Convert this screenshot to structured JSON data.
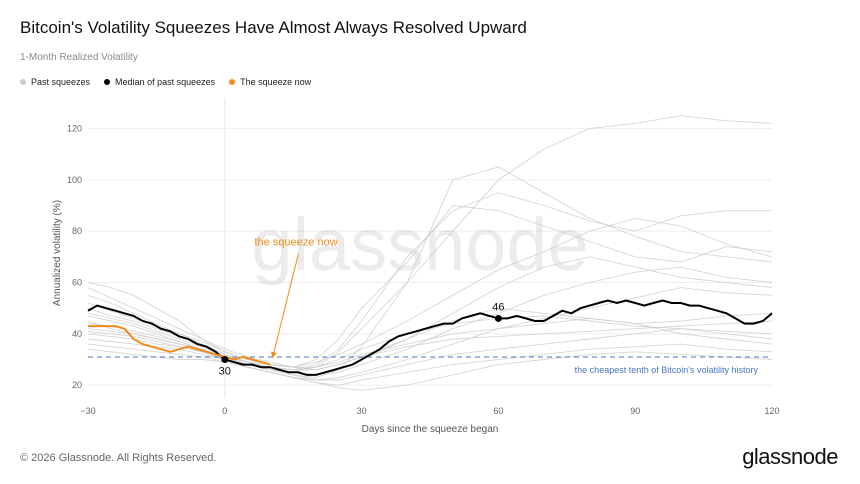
{
  "header": {
    "title": "Bitcoin's Volatility Squeezes Have Almost Always Resolved Upward",
    "subtitle": "1-Month Realized Volatility"
  },
  "footer": {
    "copyright": "© 2026 Glassnode. All Rights Reserved.",
    "logo": "glassnode"
  },
  "watermark": "glassnode",
  "colors": {
    "past": "#cccccc",
    "median": "#000000",
    "now": "#f08c1e",
    "threshold": "#4a78c2",
    "grid": "#eeeeee"
  },
  "chart_data": {
    "type": "line",
    "title": "Bitcoin's Volatility Squeezes Have Almost Always Resolved Upward",
    "subtitle": "1-Month Realized Volatility",
    "xlabel": "Days since the squeeze began",
    "ylabel": "Annualized volatility (%)",
    "xlim": [
      -30,
      120
    ],
    "ylim": [
      15,
      128
    ],
    "xticks": [
      -30,
      0,
      30,
      60,
      90,
      120
    ],
    "yticks": [
      20,
      40,
      60,
      80,
      100,
      120
    ],
    "grid": true,
    "legend_placement": "top-left",
    "legend": [
      {
        "label": "Past squeezes",
        "color": "#cccccc"
      },
      {
        "label": "Median of past squeezes",
        "color": "#000000"
      },
      {
        "label": "The squeeze now",
        "color": "#f08c1e"
      }
    ],
    "threshold": {
      "y": 31,
      "label": "the cheapest tenth of Bitcoin's volatility history"
    },
    "annotations": [
      {
        "text": "the squeeze now",
        "x": 3,
        "y": 76,
        "arrow_to": [
          10,
          29
        ]
      },
      {
        "text": "30",
        "x": 0,
        "y": 30,
        "marker": true
      },
      {
        "text": "46",
        "x": 60,
        "y": 46,
        "marker": true
      }
    ],
    "series": [
      {
        "name": "Median of past squeezes",
        "role": "median",
        "x": [
          -30,
          -28,
          -26,
          -24,
          -22,
          -20,
          -18,
          -16,
          -14,
          -12,
          -10,
          -8,
          -6,
          -4,
          -2,
          0,
          2,
          4,
          6,
          8,
          10,
          12,
          14,
          16,
          18,
          20,
          22,
          24,
          26,
          28,
          30,
          32,
          34,
          36,
          38,
          40,
          42,
          44,
          46,
          48,
          50,
          52,
          54,
          56,
          58,
          60,
          62,
          64,
          66,
          68,
          70,
          72,
          74,
          76,
          78,
          80,
          82,
          84,
          86,
          88,
          90,
          92,
          94,
          96,
          98,
          100,
          102,
          104,
          106,
          108,
          110,
          112,
          114,
          116,
          118,
          120
        ],
        "values": [
          49,
          51,
          50,
          49,
          48,
          47,
          45,
          44,
          42,
          41,
          39,
          38,
          36,
          35,
          33,
          30,
          29,
          28,
          28,
          27,
          27,
          26,
          25,
          25,
          24,
          24,
          25,
          26,
          27,
          28,
          30,
          32,
          34,
          37,
          39,
          40,
          41,
          42,
          43,
          44,
          44,
          46,
          47,
          48,
          47,
          46,
          46,
          47,
          46,
          45,
          45,
          47,
          49,
          48,
          50,
          51,
          52,
          53,
          52,
          53,
          52,
          51,
          52,
          53,
          52,
          52,
          51,
          51,
          50,
          49,
          48,
          46,
          44,
          44,
          45,
          48
        ]
      },
      {
        "name": "The squeeze now",
        "role": "now",
        "x": [
          -30,
          -28,
          -26,
          -24,
          -22,
          -20,
          -18,
          -16,
          -14,
          -12,
          -10,
          -8,
          -6,
          -4,
          -2,
          0,
          2,
          4,
          6,
          8,
          10
        ],
        "values": [
          43,
          43,
          43,
          43,
          42,
          38,
          36,
          35,
          34,
          33,
          34,
          35,
          34,
          33,
          32,
          31,
          30,
          31,
          30,
          29,
          28
        ]
      },
      {
        "role": "past",
        "x": [
          -30,
          -25,
          -20,
          -15,
          -10,
          -5,
          0,
          5,
          10,
          15,
          20,
          25,
          30,
          40,
          50,
          60,
          70,
          80,
          90,
          100,
          110,
          120
        ],
        "values": [
          55,
          52,
          48,
          44,
          40,
          36,
          32,
          29,
          27,
          25,
          27,
          33,
          42,
          60,
          80,
          100,
          112,
          120,
          122,
          125,
          123,
          122
        ]
      },
      {
        "role": "past",
        "x": [
          -30,
          -25,
          -20,
          -15,
          -10,
          -5,
          0,
          5,
          10,
          15,
          20,
          25,
          30,
          40,
          50,
          60,
          70,
          80,
          90,
          100,
          110,
          120
        ],
        "values": [
          60,
          58,
          55,
          50,
          45,
          38,
          33,
          30,
          28,
          27,
          30,
          38,
          50,
          68,
          90,
          88,
          82,
          76,
          70,
          68,
          74,
          72
        ]
      },
      {
        "role": "past",
        "x": [
          -30,
          -25,
          -20,
          -15,
          -10,
          -5,
          0,
          5,
          10,
          15,
          20,
          25,
          30,
          40,
          50,
          60,
          70,
          80,
          90,
          100,
          110,
          120
        ],
        "values": [
          45,
          42,
          40,
          38,
          36,
          34,
          31,
          28,
          26,
          24,
          23,
          26,
          35,
          60,
          100,
          105,
          95,
          85,
          78,
          72,
          70,
          68
        ]
      },
      {
        "role": "past",
        "x": [
          -30,
          -25,
          -20,
          -15,
          -10,
          -5,
          0,
          5,
          10,
          15,
          20,
          25,
          30,
          40,
          50,
          60,
          70,
          80,
          90,
          100,
          110,
          120
        ],
        "values": [
          40,
          39,
          38,
          36,
          35,
          33,
          30,
          28,
          27,
          26,
          28,
          34,
          45,
          70,
          88,
          95,
          90,
          84,
          80,
          86,
          88,
          88
        ]
      },
      {
        "role": "past",
        "x": [
          -30,
          -25,
          -20,
          -15,
          -10,
          -5,
          0,
          5,
          10,
          15,
          20,
          25,
          30,
          40,
          50,
          60,
          70,
          80,
          90,
          100,
          110,
          120
        ],
        "values": [
          52,
          49,
          46,
          43,
          40,
          37,
          33,
          30,
          28,
          27,
          29,
          32,
          36,
          45,
          55,
          65,
          72,
          80,
          85,
          82,
          75,
          70
        ]
      },
      {
        "role": "past",
        "x": [
          -30,
          -25,
          -20,
          -15,
          -10,
          -5,
          0,
          5,
          10,
          15,
          20,
          25,
          30,
          40,
          50,
          60,
          70,
          80,
          90,
          100,
          110,
          120
        ],
        "values": [
          58,
          54,
          50,
          46,
          42,
          38,
          34,
          31,
          29,
          27,
          26,
          28,
          31,
          38,
          48,
          58,
          66,
          70,
          66,
          62,
          60,
          58
        ]
      },
      {
        "role": "past",
        "x": [
          -30,
          -25,
          -20,
          -15,
          -10,
          -5,
          0,
          5,
          10,
          15,
          20,
          25,
          30,
          40,
          50,
          60,
          70,
          80,
          90,
          100,
          110,
          120
        ],
        "values": [
          48,
          46,
          44,
          41,
          38,
          35,
          31,
          29,
          27,
          25,
          24,
          25,
          28,
          34,
          42,
          48,
          55,
          60,
          64,
          66,
          62,
          60
        ]
      },
      {
        "role": "past",
        "x": [
          -30,
          -25,
          -20,
          -15,
          -10,
          -5,
          0,
          5,
          10,
          15,
          20,
          25,
          30,
          40,
          50,
          60,
          70,
          80,
          90,
          100,
          110,
          120
        ],
        "values": [
          44,
          43,
          41,
          39,
          37,
          34,
          31,
          28,
          26,
          24,
          22,
          23,
          25,
          30,
          36,
          42,
          46,
          50,
          54,
          58,
          56,
          55
        ]
      },
      {
        "role": "past",
        "x": [
          -30,
          -25,
          -20,
          -15,
          -10,
          -5,
          0,
          5,
          10,
          15,
          20,
          25,
          30,
          40,
          50,
          60,
          70,
          80,
          90,
          100,
          110,
          120
        ],
        "values": [
          38,
          37,
          36,
          35,
          34,
          32,
          30,
          28,
          26,
          25,
          24,
          26,
          30,
          38,
          45,
          50,
          48,
          46,
          44,
          45,
          47,
          48
        ]
      },
      {
        "role": "past",
        "x": [
          -30,
          -25,
          -20,
          -15,
          -10,
          -5,
          0,
          5,
          10,
          15,
          20,
          25,
          30,
          40,
          50,
          60,
          70,
          80,
          90,
          100,
          110,
          120
        ],
        "values": [
          50,
          47,
          45,
          42,
          39,
          36,
          32,
          29,
          27,
          26,
          27,
          30,
          34,
          40,
          44,
          46,
          47,
          45,
          43,
          42,
          41,
          40
        ]
      },
      {
        "role": "past",
        "x": [
          -30,
          -25,
          -20,
          -15,
          -10,
          -5,
          0,
          5,
          10,
          15,
          20,
          25,
          30,
          40,
          50,
          60,
          70,
          80,
          90,
          100,
          110,
          120
        ],
        "values": [
          42,
          41,
          40,
          38,
          36,
          34,
          31,
          29,
          28,
          27,
          27,
          29,
          32,
          36,
          40,
          42,
          44,
          46,
          44,
          40,
          38,
          36
        ]
      },
      {
        "role": "past",
        "x": [
          -30,
          -25,
          -20,
          -15,
          -10,
          -5,
          0,
          5,
          10,
          15,
          20,
          25,
          30,
          40,
          50,
          60,
          70,
          80,
          90,
          100,
          110,
          120
        ],
        "values": [
          36,
          35,
          34,
          33,
          32,
          31,
          29,
          27,
          25,
          23,
          22,
          22,
          24,
          28,
          32,
          34,
          36,
          38,
          40,
          42,
          40,
          38
        ]
      },
      {
        "role": "past",
        "x": [
          -30,
          -25,
          -20,
          -15,
          -10,
          -5,
          0,
          5,
          10,
          15,
          20,
          25,
          30,
          40,
          50,
          60,
          70,
          80,
          90,
          100,
          110,
          120
        ],
        "values": [
          34,
          33,
          32,
          31,
          30,
          30,
          29,
          27,
          25,
          23,
          21,
          20,
          22,
          25,
          28,
          30,
          32,
          34,
          35,
          36,
          34,
          33
        ]
      },
      {
        "role": "past",
        "x": [
          -30,
          -25,
          -20,
          -15,
          -10,
          -5,
          0,
          5,
          10,
          15,
          20,
          25,
          30,
          40,
          50,
          60,
          70,
          80,
          90,
          100,
          110,
          120
        ],
        "values": [
          47,
          45,
          43,
          40,
          37,
          34,
          30,
          28,
          27,
          26,
          26,
          28,
          31,
          35,
          38,
          39,
          40,
          41,
          42,
          43,
          44,
          45
        ]
      },
      {
        "role": "past",
        "x": [
          -30,
          -25,
          -20,
          -15,
          -10,
          -5,
          0,
          5,
          10,
          15,
          20,
          25,
          30,
          40,
          50,
          60,
          70,
          80,
          90,
          100,
          110,
          120
        ],
        "values": [
          41,
          40,
          39,
          37,
          35,
          33,
          30,
          27,
          25,
          23,
          21,
          19,
          18,
          20,
          24,
          28,
          30,
          32,
          33,
          32,
          31,
          30
        ]
      }
    ]
  }
}
